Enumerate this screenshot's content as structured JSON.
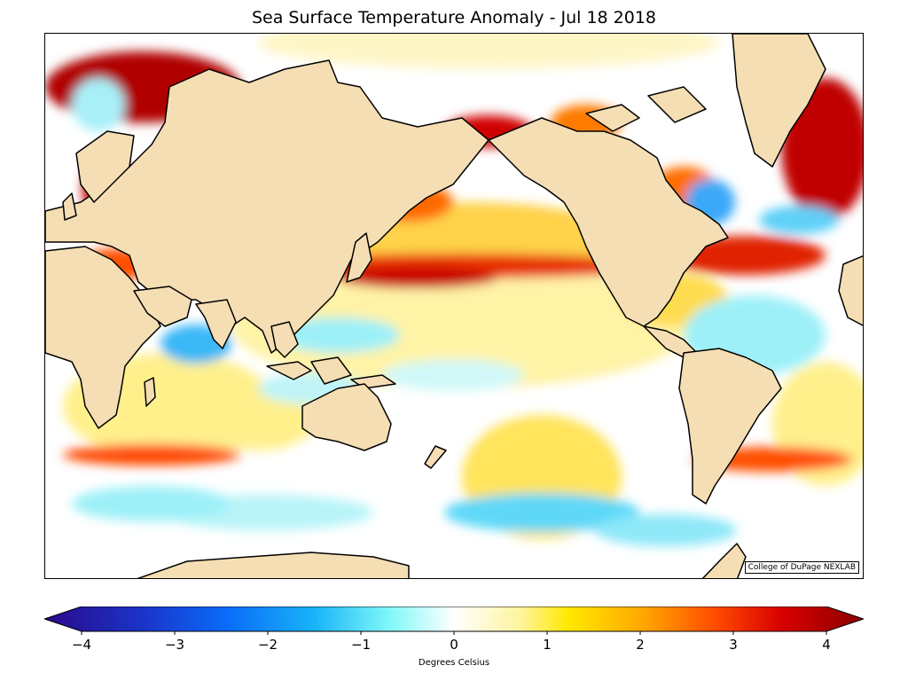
{
  "title": "Sea Surface Temperature Anomaly - Jul 18 2018",
  "credit": "College of DuPage NEXLAB",
  "colorbar": {
    "label": "Degrees Celsius",
    "min": -4,
    "max": 4,
    "ticks": [
      "−4",
      "−3",
      "−2",
      "−1",
      "0",
      "1",
      "2",
      "3",
      "4"
    ],
    "colors": [
      "#2a0a8a",
      "#1030c8",
      "#0a6af8",
      "#18b4f8",
      "#7ef8f8",
      "#ffffff",
      "#fff4a0",
      "#ffe800",
      "#ffa800",
      "#ff4a00",
      "#d80000",
      "#8a0000"
    ]
  },
  "map": {
    "land_color": "#f5deb3",
    "ocean_base": "#ffffff"
  }
}
